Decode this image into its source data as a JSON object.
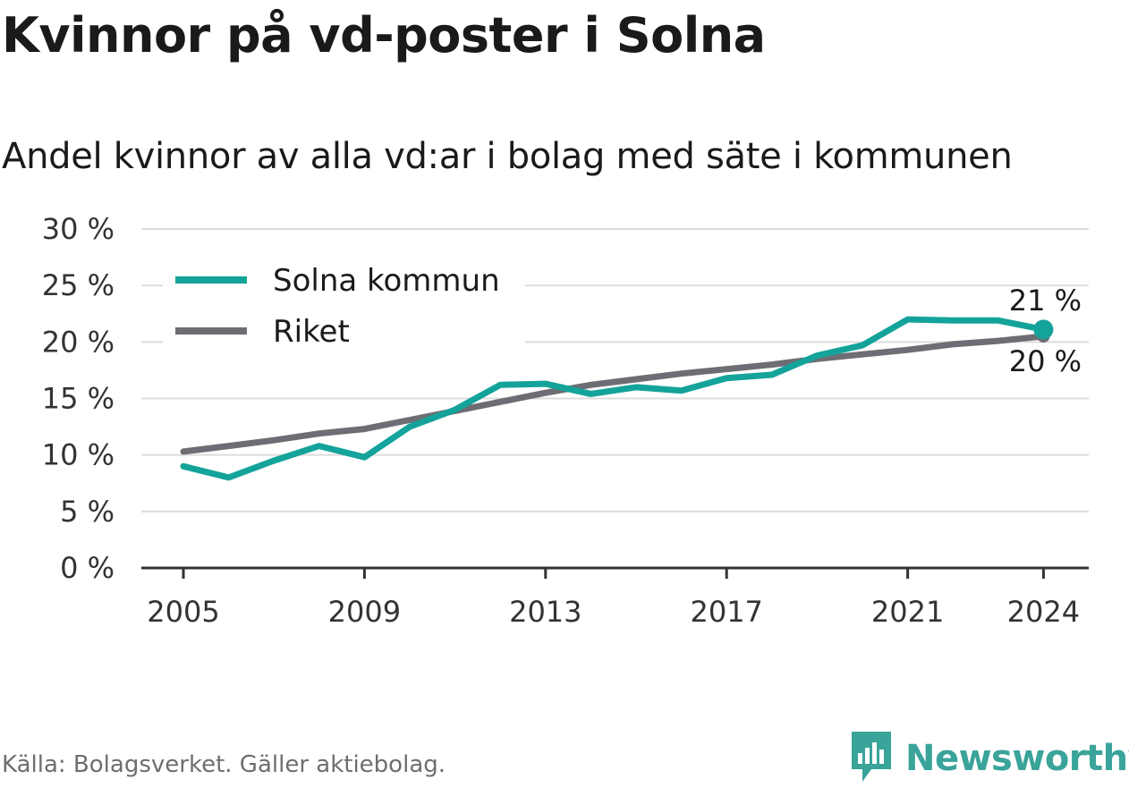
{
  "title": "Kvinnor på vd-poster i Solna",
  "subtitle": "Andel kvinnor av alla vd:ar i bolag med säte i kommunen",
  "source": "Källa: Bolagsverket. Gäller aktiebolag.",
  "brand": "Newsworthy",
  "colors": {
    "solna": "#14a39a",
    "riket": "#6e6d73",
    "grid": "#dddddd",
    "axis": "#333333",
    "brand": "#3aa39a"
  },
  "chart_data": {
    "type": "line",
    "x": [
      2005,
      2006,
      2007,
      2008,
      2009,
      2010,
      2011,
      2012,
      2013,
      2014,
      2015,
      2016,
      2017,
      2018,
      2019,
      2020,
      2021,
      2022,
      2023,
      2024
    ],
    "xlim": [
      2004,
      2025
    ],
    "x_ticks": [
      2005,
      2009,
      2013,
      2017,
      2021,
      2024
    ],
    "x_tick_labels": [
      "2005",
      "2009",
      "2013",
      "2017",
      "2021",
      "2024"
    ],
    "ylim": [
      0,
      30
    ],
    "y_ticks": [
      0,
      5,
      10,
      15,
      20,
      25,
      30
    ],
    "y_tick_labels": [
      "0 %",
      "5 %",
      "10 %",
      "15 %",
      "20 %",
      "25 %",
      "30 %"
    ],
    "grid": true,
    "legend_position": "top-left",
    "series": [
      {
        "name": "Solna kommun",
        "color": "#14a39a",
        "values": [
          9.0,
          8.0,
          9.5,
          10.8,
          9.8,
          12.5,
          14.0,
          16.2,
          16.3,
          15.4,
          16.0,
          15.7,
          16.8,
          17.1,
          18.8,
          19.7,
          22.0,
          21.9,
          21.9,
          21.1
        ],
        "end_label": "21 %"
      },
      {
        "name": "Riket",
        "color": "#6e6d73",
        "values": [
          10.3,
          10.8,
          11.3,
          11.9,
          12.3,
          13.1,
          13.9,
          14.7,
          15.5,
          16.2,
          16.7,
          17.2,
          17.6,
          18.0,
          18.5,
          18.9,
          19.3,
          19.8,
          20.1,
          20.5
        ],
        "end_label": "20 %"
      }
    ]
  }
}
